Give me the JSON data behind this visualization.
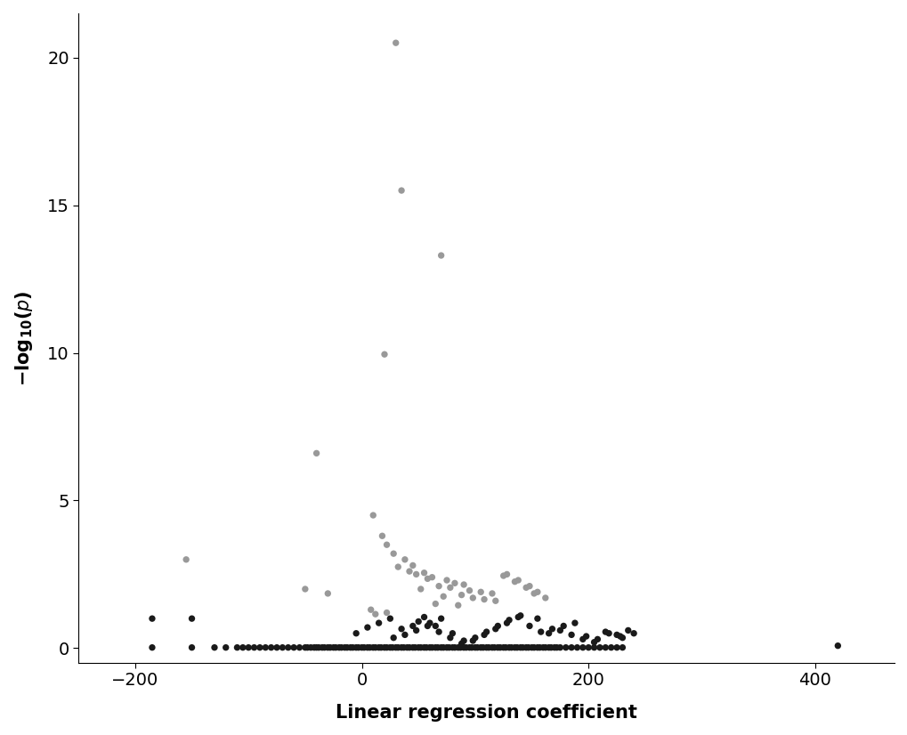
{
  "grey_points": [
    [
      30,
      20.5
    ],
    [
      35,
      15.5
    ],
    [
      70,
      13.3
    ],
    [
      20,
      9.95
    ],
    [
      -40,
      6.6
    ],
    [
      -155,
      3.0
    ],
    [
      -50,
      2.0
    ],
    [
      -30,
      1.85
    ],
    [
      10,
      4.5
    ],
    [
      18,
      3.8
    ],
    [
      22,
      3.5
    ],
    [
      28,
      3.2
    ],
    [
      38,
      3.0
    ],
    [
      45,
      2.8
    ],
    [
      32,
      2.75
    ],
    [
      42,
      2.6
    ],
    [
      55,
      2.55
    ],
    [
      48,
      2.5
    ],
    [
      62,
      2.4
    ],
    [
      58,
      2.35
    ],
    [
      75,
      2.3
    ],
    [
      82,
      2.2
    ],
    [
      90,
      2.15
    ],
    [
      68,
      2.1
    ],
    [
      78,
      2.05
    ],
    [
      52,
      2.0
    ],
    [
      95,
      1.95
    ],
    [
      105,
      1.9
    ],
    [
      115,
      1.85
    ],
    [
      88,
      1.8
    ],
    [
      72,
      1.75
    ],
    [
      98,
      1.7
    ],
    [
      108,
      1.65
    ],
    [
      118,
      1.6
    ],
    [
      128,
      2.5
    ],
    [
      138,
      2.3
    ],
    [
      148,
      2.1
    ],
    [
      155,
      1.9
    ],
    [
      162,
      1.7
    ],
    [
      8,
      1.3
    ],
    [
      12,
      1.15
    ],
    [
      65,
      1.5
    ],
    [
      85,
      1.45
    ],
    [
      125,
      2.45
    ],
    [
      135,
      2.25
    ],
    [
      145,
      2.05
    ],
    [
      152,
      1.85
    ],
    [
      22,
      1.2
    ]
  ],
  "black_points": [
    [
      -185,
      1.0
    ],
    [
      -185,
      0.02
    ],
    [
      -150,
      1.0
    ],
    [
      -150,
      0.02
    ],
    [
      -130,
      0.02
    ],
    [
      -120,
      0.02
    ],
    [
      -110,
      0.02
    ],
    [
      -105,
      0.02
    ],
    [
      -100,
      0.02
    ],
    [
      -95,
      0.02
    ],
    [
      -90,
      0.02
    ],
    [
      -85,
      0.02
    ],
    [
      -80,
      0.02
    ],
    [
      -75,
      0.02
    ],
    [
      -70,
      0.02
    ],
    [
      -65,
      0.02
    ],
    [
      -60,
      0.02
    ],
    [
      -55,
      0.02
    ],
    [
      -50,
      0.02
    ],
    [
      -48,
      0.02
    ],
    [
      -45,
      0.02
    ],
    [
      -42,
      0.02
    ],
    [
      -40,
      0.02
    ],
    [
      -38,
      0.02
    ],
    [
      -35,
      0.02
    ],
    [
      -33,
      0.02
    ],
    [
      -30,
      0.02
    ],
    [
      -28,
      0.02
    ],
    [
      -25,
      0.02
    ],
    [
      -23,
      0.02
    ],
    [
      -20,
      0.02
    ],
    [
      -18,
      0.02
    ],
    [
      -15,
      0.02
    ],
    [
      -13,
      0.02
    ],
    [
      -10,
      0.02
    ],
    [
      -8,
      0.02
    ],
    [
      -5,
      0.02
    ],
    [
      -3,
      0.02
    ],
    [
      0,
      0.02
    ],
    [
      2,
      0.02
    ],
    [
      5,
      0.02
    ],
    [
      7,
      0.02
    ],
    [
      10,
      0.02
    ],
    [
      12,
      0.02
    ],
    [
      15,
      0.02
    ],
    [
      17,
      0.02
    ],
    [
      20,
      0.02
    ],
    [
      22,
      0.02
    ],
    [
      25,
      0.02
    ],
    [
      27,
      0.02
    ],
    [
      30,
      0.02
    ],
    [
      32,
      0.02
    ],
    [
      35,
      0.02
    ],
    [
      37,
      0.02
    ],
    [
      40,
      0.02
    ],
    [
      42,
      0.02
    ],
    [
      45,
      0.02
    ],
    [
      47,
      0.02
    ],
    [
      50,
      0.02
    ],
    [
      52,
      0.02
    ],
    [
      55,
      0.02
    ],
    [
      57,
      0.02
    ],
    [
      60,
      0.02
    ],
    [
      62,
      0.02
    ],
    [
      65,
      0.02
    ],
    [
      67,
      0.02
    ],
    [
      70,
      0.02
    ],
    [
      72,
      0.02
    ],
    [
      75,
      0.02
    ],
    [
      77,
      0.02
    ],
    [
      80,
      0.02
    ],
    [
      82,
      0.02
    ],
    [
      85,
      0.02
    ],
    [
      87,
      0.02
    ],
    [
      90,
      0.02
    ],
    [
      92,
      0.02
    ],
    [
      95,
      0.02
    ],
    [
      97,
      0.02
    ],
    [
      100,
      0.02
    ],
    [
      102,
      0.02
    ],
    [
      105,
      0.02
    ],
    [
      107,
      0.02
    ],
    [
      110,
      0.02
    ],
    [
      112,
      0.02
    ],
    [
      115,
      0.02
    ],
    [
      117,
      0.02
    ],
    [
      120,
      0.02
    ],
    [
      122,
      0.02
    ],
    [
      125,
      0.02
    ],
    [
      127,
      0.02
    ],
    [
      130,
      0.02
    ],
    [
      132,
      0.02
    ],
    [
      135,
      0.02
    ],
    [
      137,
      0.02
    ],
    [
      140,
      0.02
    ],
    [
      142,
      0.02
    ],
    [
      145,
      0.02
    ],
    [
      147,
      0.02
    ],
    [
      150,
      0.02
    ],
    [
      152,
      0.02
    ],
    [
      155,
      0.02
    ],
    [
      157,
      0.02
    ],
    [
      160,
      0.02
    ],
    [
      162,
      0.02
    ],
    [
      165,
      0.02
    ],
    [
      167,
      0.02
    ],
    [
      170,
      0.02
    ],
    [
      172,
      0.02
    ],
    [
      175,
      0.02
    ],
    [
      180,
      0.02
    ],
    [
      185,
      0.02
    ],
    [
      190,
      0.02
    ],
    [
      195,
      0.02
    ],
    [
      200,
      0.02
    ],
    [
      205,
      0.02
    ],
    [
      210,
      0.02
    ],
    [
      215,
      0.02
    ],
    [
      220,
      0.02
    ],
    [
      225,
      0.02
    ],
    [
      230,
      0.02
    ],
    [
      420,
      0.08
    ],
    [
      -5,
      0.5
    ],
    [
      5,
      0.7
    ],
    [
      15,
      0.85
    ],
    [
      25,
      1.0
    ],
    [
      35,
      0.65
    ],
    [
      45,
      0.75
    ],
    [
      50,
      0.9
    ],
    [
      55,
      1.05
    ],
    [
      60,
      0.85
    ],
    [
      65,
      0.75
    ],
    [
      70,
      1.0
    ],
    [
      80,
      0.5
    ],
    [
      90,
      0.25
    ],
    [
      100,
      0.35
    ],
    [
      110,
      0.55
    ],
    [
      120,
      0.75
    ],
    [
      130,
      0.95
    ],
    [
      140,
      1.1
    ],
    [
      155,
      1.0
    ],
    [
      165,
      0.5
    ],
    [
      175,
      0.6
    ],
    [
      185,
      0.45
    ],
    [
      195,
      0.3
    ],
    [
      205,
      0.2
    ],
    [
      215,
      0.55
    ],
    [
      225,
      0.45
    ],
    [
      235,
      0.6
    ],
    [
      230,
      0.35
    ],
    [
      240,
      0.5
    ],
    [
      28,
      0.35
    ],
    [
      38,
      0.45
    ],
    [
      48,
      0.6
    ],
    [
      58,
      0.75
    ],
    [
      68,
      0.55
    ],
    [
      78,
      0.35
    ],
    [
      88,
      0.15
    ],
    [
      98,
      0.25
    ],
    [
      108,
      0.45
    ],
    [
      118,
      0.65
    ],
    [
      128,
      0.85
    ],
    [
      138,
      1.05
    ],
    [
      148,
      0.75
    ],
    [
      158,
      0.55
    ],
    [
      168,
      0.65
    ],
    [
      178,
      0.75
    ],
    [
      188,
      0.85
    ],
    [
      198,
      0.4
    ],
    [
      208,
      0.3
    ],
    [
      218,
      0.5
    ],
    [
      228,
      0.4
    ]
  ],
  "grey_color": "#999999",
  "black_color": "#1a1a1a",
  "xlabel": "Linear regression coefficient",
  "xlim": [
    -250,
    470
  ],
  "ylim": [
    -0.5,
    21.5
  ],
  "xticks": [
    -200,
    0,
    200,
    400
  ],
  "yticks": [
    0,
    5,
    10,
    15,
    20
  ],
  "background_color": "#ffffff",
  "marker_size": 28,
  "font_size": 14,
  "label_font_size": 15
}
